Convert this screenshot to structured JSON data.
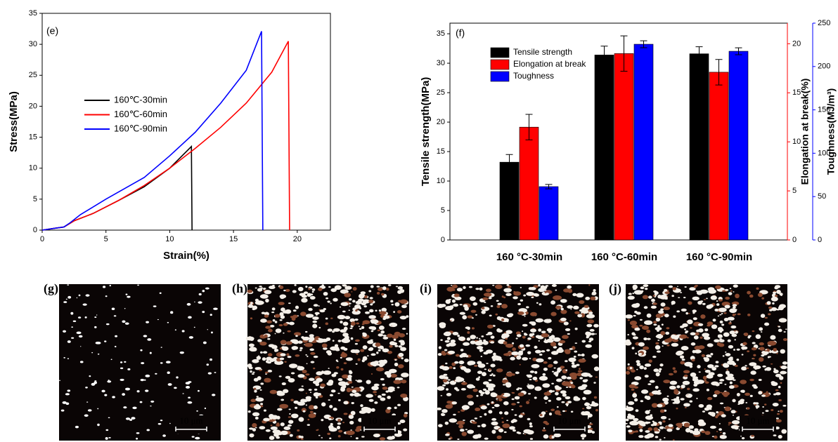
{
  "chart_data": [
    {
      "type": "line",
      "annotation": "(e)",
      "x_label": "Strain(%)",
      "y_label": "Stress(MPa)",
      "xlim": [
        0,
        22.6
      ],
      "xticks": [
        0,
        5,
        10,
        15,
        20
      ],
      "ylim": [
        0,
        35
      ],
      "yticks": [
        0,
        5,
        10,
        15,
        20,
        25,
        30,
        35
      ],
      "series": [
        {
          "name": "160℃-30min",
          "color": "#000000",
          "x": [
            0,
            1,
            1.7,
            2.5,
            4,
            6,
            8,
            10,
            11.7,
            11.75
          ],
          "values": [
            0,
            0.3,
            0.5,
            1.5,
            2.7,
            4.8,
            7,
            10,
            13.5,
            0
          ]
        },
        {
          "name": "160℃-60min",
          "color": "#ff0000",
          "x": [
            0,
            1,
            1.7,
            2.5,
            4,
            6,
            8,
            10,
            12,
            14,
            16,
            18,
            19.3,
            19.4
          ],
          "values": [
            0,
            0.3,
            0.5,
            1.5,
            2.7,
            4.8,
            7.2,
            10,
            13.2,
            16.6,
            20.5,
            25.5,
            30.5,
            0
          ]
        },
        {
          "name": "160℃-90min",
          "color": "#0000ff",
          "x": [
            0,
            1,
            1.7,
            2.2,
            3,
            5,
            8,
            10,
            12,
            14,
            16,
            17.2,
            17.3
          ],
          "values": [
            0,
            0.3,
            0.5,
            1.2,
            2.5,
            5,
            8.5,
            12,
            15.8,
            20.5,
            25.8,
            32.1,
            0
          ]
        }
      ]
    },
    {
      "type": "bar",
      "annotation": "(f)",
      "y_label": "Tensile strength(MPa)",
      "y2_label": "Elongation at break(%)",
      "y3_label": "Toughness(MJ/m³)",
      "categories": [
        "160 °C-30min",
        "160 °C-60min",
        "160 °C-90min"
      ],
      "ylim": [
        0,
        36.8
      ],
      "yticks": [
        0,
        5,
        10,
        15,
        20,
        25,
        30,
        35
      ],
      "y2lim": [
        0,
        22.1
      ],
      "y2ticks": [
        0,
        5,
        10,
        15,
        20
      ],
      "y3lim": [
        0,
        250
      ],
      "y3ticks": [
        0,
        50,
        100,
        150,
        200,
        250
      ],
      "series": [
        {
          "name": "Tensile strength",
          "color": "#000000",
          "axis": "y",
          "values": [
            13.2,
            31.4,
            31.6
          ],
          "errors": [
            1.3,
            1.5,
            1.2
          ]
        },
        {
          "name": "Elongation at break",
          "color": "#ff0000",
          "axis": "y2",
          "values": [
            11.5,
            19.0,
            17.1
          ],
          "errors": [
            1.3,
            1.8,
            1.3
          ]
        },
        {
          "name": "Toughness",
          "color": "#0000ff",
          "axis": "y3",
          "values": [
            61.5,
            225.7,
            217.6
          ],
          "errors": [
            2.5,
            4,
            4
          ]
        }
      ]
    }
  ],
  "images": [
    {
      "label": "(g)",
      "scale_bar": "10 μm"
    },
    {
      "label": "(h)",
      "scale_bar": "10 μm"
    },
    {
      "label": "(i)",
      "scale_bar": "10 μm"
    },
    {
      "label": "(j)",
      "scale_bar": "10 μm"
    }
  ]
}
